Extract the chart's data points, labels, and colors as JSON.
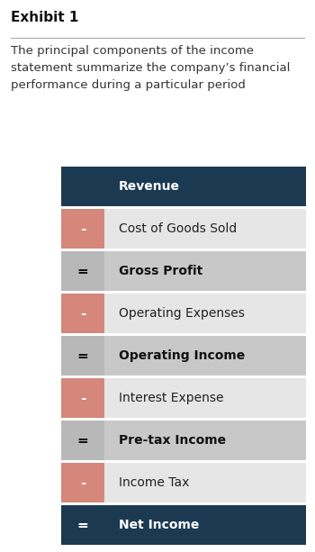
{
  "title": "Exhibit 1",
  "subtitle": "The principal components of the income\nstatement summarize the company’s financial\nperformance during a particular period",
  "rows": [
    {
      "symbol": "",
      "label": "Revenue",
      "type": "header",
      "symbol_bg": "#1b3a52",
      "row_bg": "#1b3a52",
      "label_color": "#ffffff",
      "symbol_color": "#ffffff",
      "bold": true
    },
    {
      "symbol": "-",
      "label": "Cost of Goods Sold",
      "type": "subtract",
      "symbol_bg": "#d4877a",
      "row_bg": "#e6e6e6",
      "label_color": "#222222",
      "symbol_color": "#ffffff",
      "bold": false
    },
    {
      "symbol": "=",
      "label": "Gross Profit",
      "type": "result",
      "symbol_bg": "#b8b8b8",
      "row_bg": "#c8c8c8",
      "label_color": "#111111",
      "symbol_color": "#111111",
      "bold": true
    },
    {
      "symbol": "-",
      "label": "Operating Expenses",
      "type": "subtract",
      "symbol_bg": "#d4877a",
      "row_bg": "#e6e6e6",
      "label_color": "#222222",
      "symbol_color": "#ffffff",
      "bold": false
    },
    {
      "symbol": "=",
      "label": "Operating Income",
      "type": "result",
      "symbol_bg": "#b8b8b8",
      "row_bg": "#c8c8c8",
      "label_color": "#111111",
      "symbol_color": "#111111",
      "bold": true
    },
    {
      "symbol": "-",
      "label": "Interest Expense",
      "type": "subtract",
      "symbol_bg": "#d4877a",
      "row_bg": "#e6e6e6",
      "label_color": "#222222",
      "symbol_color": "#ffffff",
      "bold": false
    },
    {
      "symbol": "=",
      "label": "Pre-tax Income",
      "type": "result",
      "symbol_bg": "#b8b8b8",
      "row_bg": "#c8c8c8",
      "label_color": "#111111",
      "symbol_color": "#111111",
      "bold": true
    },
    {
      "symbol": "-",
      "label": "Income Tax",
      "type": "subtract",
      "symbol_bg": "#d4877a",
      "row_bg": "#e6e6e6",
      "label_color": "#222222",
      "symbol_color": "#ffffff",
      "bold": false
    },
    {
      "symbol": "=",
      "label": "Net Income",
      "type": "header",
      "symbol_bg": "#1b3a52",
      "row_bg": "#1b3a52",
      "label_color": "#ffffff",
      "symbol_color": "#ffffff",
      "bold": true
    }
  ],
  "fig_width": 3.5,
  "fig_height": 6.13,
  "dpi": 100,
  "background_color": "#ffffff",
  "title_fontsize": 11,
  "subtitle_fontsize": 9.5,
  "label_fontsize": 10,
  "symbol_fontsize": 11,
  "title_color": "#111111",
  "subtitle_color": "#333333",
  "line_color": "#aaaaaa"
}
